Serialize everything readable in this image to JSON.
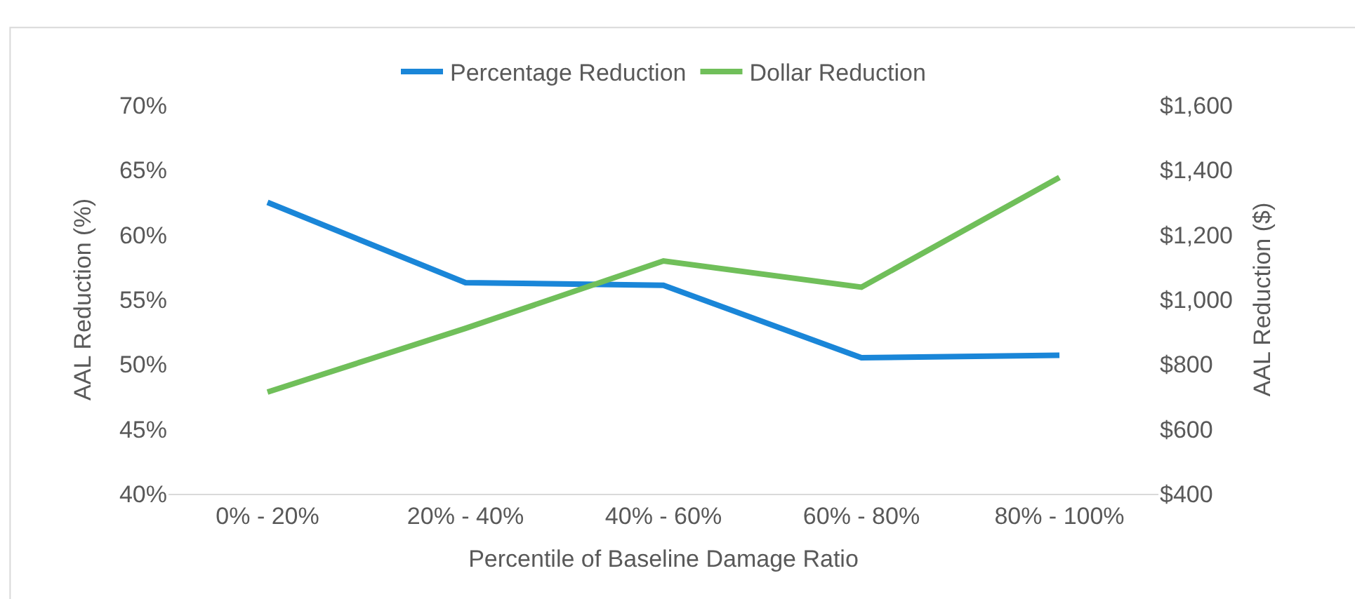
{
  "chart_data": {
    "type": "line",
    "xlabel": "Percentile of Baseline Damage Ratio",
    "ylabel": "AAL Reduction (%)",
    "y2label": "AAL Reduction ($)",
    "categories": [
      "0% - 20%",
      "20% - 40%",
      "40% - 60%",
      "60% - 80%",
      "80% - 100%"
    ],
    "series": [
      {
        "name": "Percentage Reduction",
        "color": "#1a86d8",
        "values": [
          62.5,
          56.3,
          56.1,
          50.5,
          50.7
        ]
      },
      {
        "name": "Dollar Reduction",
        "color": "#70bf5a",
        "axis": "y2",
        "values": [
          714,
          911,
          1119,
          1038,
          1377
        ]
      }
    ],
    "ylim": [
      40,
      70
    ],
    "yticks": [
      {
        "value": 40,
        "label": "40%"
      },
      {
        "value": 45,
        "label": "45%"
      },
      {
        "value": 50,
        "label": "50%"
      },
      {
        "value": 55,
        "label": "55%"
      },
      {
        "value": 60,
        "label": "60%"
      },
      {
        "value": 65,
        "label": "65%"
      },
      {
        "value": 70,
        "label": "70%"
      }
    ],
    "y2lim": [
      400,
      1600
    ],
    "y2ticks": [
      {
        "value": 400,
        "label": "$400"
      },
      {
        "value": 600,
        "label": "$600"
      },
      {
        "value": 800,
        "label": "$800"
      },
      {
        "value": 1000,
        "label": "$1,000"
      },
      {
        "value": 1200,
        "label": "$1,200"
      },
      {
        "value": 1400,
        "label": "$1,400"
      },
      {
        "value": 1600,
        "label": "$1,600"
      }
    ],
    "legend": "top",
    "marker": "none",
    "line_style": "solid"
  }
}
